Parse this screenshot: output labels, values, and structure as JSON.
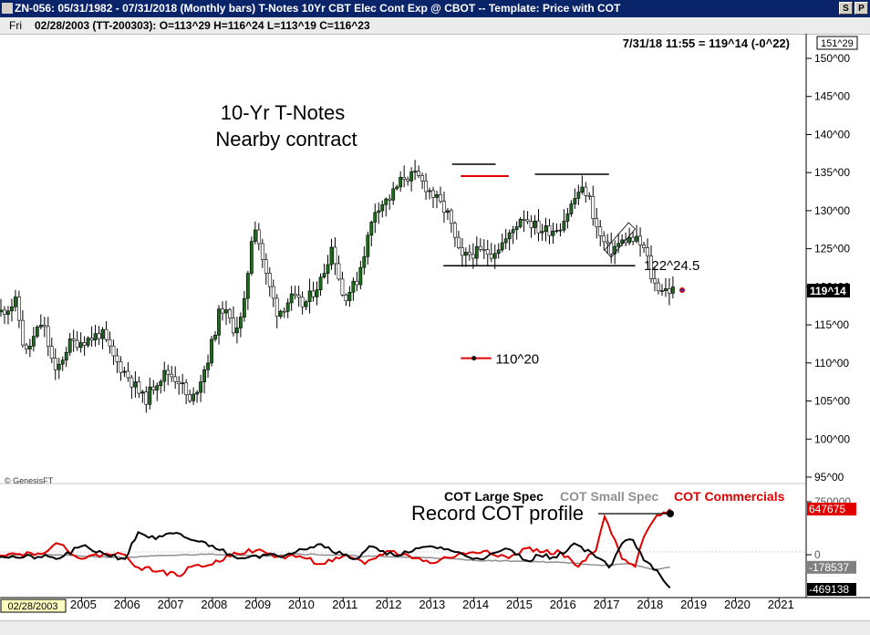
{
  "window": {
    "title": "ZN-056:  05/31/1982 - 07/31/2018  (Monthly bars)    T-Notes 10Yr CBT Elec Cont Exp @ CBOT  --  Template: Price with COT",
    "buttons": [
      "S",
      "P"
    ]
  },
  "info": {
    "day": "Fri",
    "values": "02/28/2003 (TT-200303):  O=113^29  H=116^24  L=113^19  C=116^23"
  },
  "chart_data": {
    "type": "candlestick",
    "quote": "7/31/18 11:55 = 119^14 (-0^22)",
    "copyright": "© GenesisFT",
    "title_lines": [
      "10-Yr T-Notes",
      "Nearby contract"
    ],
    "price_axis": {
      "top_label": "151^29",
      "ticks": [
        "150^00",
        "145^00",
        "140^00",
        "135^00",
        "130^00",
        "125^00",
        "120^00",
        "115^00",
        "110^00",
        "105^00",
        "100^00",
        "95^00"
      ],
      "tick_values": [
        150,
        145,
        140,
        135,
        130,
        125,
        120,
        115,
        110,
        105,
        100,
        95
      ],
      "last_label": "119^14",
      "last_value": 119.4375
    },
    "cot_axis": {
      "ticks": [
        "750000",
        "0"
      ],
      "tick_values": [
        750000,
        0
      ],
      "labels": [
        {
          "text": "647675",
          "value": 647675,
          "color": "#e00000"
        },
        {
          "text": "-178537",
          "value": -178537,
          "color": "#808080"
        },
        {
          "text": "-469138",
          "value": -469138,
          "color": "#000000"
        }
      ]
    },
    "date_axis": {
      "cursor": "02/28/2003",
      "years": [
        "2005",
        "2006",
        "2007",
        "2008",
        "2009",
        "2010",
        "2011",
        "2012",
        "2013",
        "2014",
        "2015",
        "2016",
        "2017",
        "2018",
        "2019",
        "2020",
        "2021"
      ]
    },
    "annotations": {
      "support_label": "122^24.5",
      "support_value": 122.77,
      "target_label": "110^20",
      "target_value": 110.625,
      "cot_note": "Record COT profile"
    },
    "legend": [
      {
        "name": "COT Large Spec",
        "color": "#000000"
      },
      {
        "name": "COT Small Spec",
        "color": "#909090"
      },
      {
        "name": "COT Commercials",
        "color": "#e00000"
      }
    ],
    "price_anchors": [
      [
        2003.15,
        116.7
      ],
      [
        2003.5,
        118
      ],
      [
        2003.7,
        111
      ],
      [
        2004.1,
        115.5
      ],
      [
        2004.4,
        108.5
      ],
      [
        2004.7,
        112.5
      ],
      [
        2005.2,
        113.2
      ],
      [
        2005.45,
        114
      ],
      [
        2005.75,
        110.5
      ],
      [
        2006.1,
        108
      ],
      [
        2006.45,
        105
      ],
      [
        2006.7,
        107.5
      ],
      [
        2006.95,
        108.8
      ],
      [
        2007.25,
        107.7
      ],
      [
        2007.5,
        104.5
      ],
      [
        2007.9,
        110.5
      ],
      [
        2008.2,
        117.5
      ],
      [
        2008.5,
        114.5
      ],
      [
        2008.7,
        116
      ],
      [
        2008.95,
        129
      ],
      [
        2009.25,
        121
      ],
      [
        2009.5,
        116.5
      ],
      [
        2009.8,
        118.5
      ],
      [
        2010.1,
        117.5
      ],
      [
        2010.5,
        121
      ],
      [
        2010.75,
        125.5
      ],
      [
        2011.0,
        118.5
      ],
      [
        2011.3,
        120.5
      ],
      [
        2011.75,
        130.5
      ],
      [
        2012.05,
        131.5
      ],
      [
        2012.4,
        134.5
      ],
      [
        2012.7,
        134.5
      ],
      [
        2013.0,
        132.5
      ],
      [
        2013.4,
        129.5
      ],
      [
        2013.7,
        123.5
      ],
      [
        2013.95,
        124.5
      ],
      [
        2014.4,
        124.5
      ],
      [
        2014.8,
        126.5
      ],
      [
        2015.1,
        129.5
      ],
      [
        2015.5,
        127.5
      ],
      [
        2015.8,
        127.5
      ],
      [
        2016.0,
        128.2
      ],
      [
        2016.4,
        132.5
      ],
      [
        2016.6,
        132.5
      ],
      [
        2016.85,
        127
      ],
      [
        2017.1,
        124.7
      ],
      [
        2017.5,
        126.3
      ],
      [
        2017.75,
        126
      ],
      [
        2017.95,
        124.5
      ],
      [
        2018.1,
        120.5
      ],
      [
        2018.3,
        119.8
      ],
      [
        2018.58,
        119.44
      ]
    ],
    "cot_large_spec": [
      [
        2003,
        0
      ],
      [
        2003.5,
        -40000
      ],
      [
        2004,
        -30000
      ],
      [
        2004.5,
        -50000
      ],
      [
        2005,
        120000
      ],
      [
        2005.5,
        20000
      ],
      [
        2006,
        -60000
      ],
      [
        2006.3,
        320000
      ],
      [
        2006.7,
        220000
      ],
      [
        2007.1,
        300000
      ],
      [
        2007.6,
        200000
      ],
      [
        2008,
        130000
      ],
      [
        2008.5,
        -30000
      ],
      [
        2009,
        -10000
      ],
      [
        2009.5,
        -20000
      ],
      [
        2010,
        80000
      ],
      [
        2010.5,
        150000
      ],
      [
        2011,
        0
      ],
      [
        2011.3,
        -60000
      ],
      [
        2011.6,
        120000
      ],
      [
        2012,
        0
      ],
      [
        2012.5,
        30000
      ],
      [
        2013,
        120000
      ],
      [
        2013.4,
        80000
      ],
      [
        2013.9,
        -40000
      ],
      [
        2014.3,
        -30000
      ],
      [
        2014.8,
        80000
      ],
      [
        2015.2,
        -80000
      ],
      [
        2015.5,
        -10000
      ],
      [
        2015.9,
        -40000
      ],
      [
        2016.3,
        160000
      ],
      [
        2016.7,
        30000
      ],
      [
        2016.9,
        -60000
      ],
      [
        2017.1,
        -180000
      ],
      [
        2017.4,
        160000
      ],
      [
        2017.65,
        210000
      ],
      [
        2017.9,
        -80000
      ],
      [
        2018.2,
        -220000
      ],
      [
        2018.5,
        -469138
      ]
    ],
    "cot_small_spec": [
      [
        2003,
        -20000
      ],
      [
        2004,
        10000
      ],
      [
        2005,
        -20000
      ],
      [
        2006,
        -40000
      ],
      [
        2007,
        -10000
      ],
      [
        2008,
        10000
      ],
      [
        2009,
        -20000
      ],
      [
        2010,
        10000
      ],
      [
        2011,
        -10000
      ],
      [
        2012,
        -30000
      ],
      [
        2013,
        -40000
      ],
      [
        2014,
        -80000
      ],
      [
        2015,
        -90000
      ],
      [
        2016,
        -110000
      ],
      [
        2017,
        -150000
      ],
      [
        2017.6,
        -130000
      ],
      [
        2018.1,
        -210000
      ],
      [
        2018.5,
        -178537
      ]
    ],
    "cot_commercials": [
      [
        2003,
        20000
      ],
      [
        2003.5,
        10000
      ],
      [
        2004,
        20000
      ],
      [
        2004.5,
        150000
      ],
      [
        2005,
        -60000
      ],
      [
        2005.5,
        10000
      ],
      [
        2006,
        0
      ],
      [
        2006.3,
        -180000
      ],
      [
        2006.8,
        -230000
      ],
      [
        2007.2,
        -300000
      ],
      [
        2007.6,
        -150000
      ],
      [
        2008,
        -140000
      ],
      [
        2008.5,
        30000
      ],
      [
        2009,
        60000
      ],
      [
        2009.5,
        -30000
      ],
      [
        2010,
        -20000
      ],
      [
        2010.5,
        -130000
      ],
      [
        2011,
        -20000
      ],
      [
        2011.5,
        -130000
      ],
      [
        2012,
        50000
      ],
      [
        2012.5,
        -10000
      ],
      [
        2013,
        -120000
      ],
      [
        2013.4,
        -40000
      ],
      [
        2013.9,
        30000
      ],
      [
        2014.3,
        60000
      ],
      [
        2014.8,
        -50000
      ],
      [
        2015.2,
        90000
      ],
      [
        2015.6,
        40000
      ],
      [
        2016.0,
        30000
      ],
      [
        2016.4,
        -170000
      ],
      [
        2016.8,
        60000
      ],
      [
        2017.0,
        540000
      ],
      [
        2017.4,
        -60000
      ],
      [
        2017.7,
        -170000
      ],
      [
        2017.9,
        250000
      ],
      [
        2018.2,
        560000
      ],
      [
        2018.5,
        647675
      ]
    ]
  }
}
